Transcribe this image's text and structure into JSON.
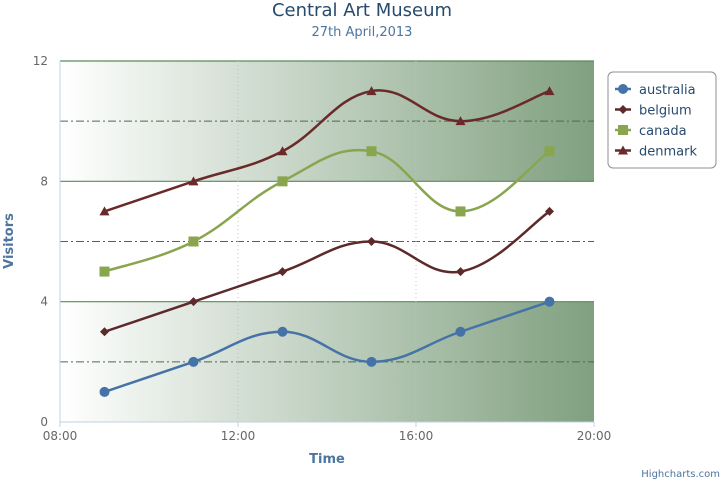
{
  "chart_data": {
    "type": "line",
    "title": "Central Art Museum",
    "subtitle": "27th April,2013",
    "xlabel": "Time",
    "ylabel": "Visitors",
    "x": [
      "09:00",
      "11:00",
      "13:00",
      "15:00",
      "17:00",
      "19:00"
    ],
    "x_ticks": [
      "08:00",
      "12:00",
      "16:00",
      "20:00"
    ],
    "y_ticks": [
      "0",
      "4",
      "8",
      "12"
    ],
    "xlim": [
      "08:00",
      "20:00"
    ],
    "ylim": [
      0,
      12
    ],
    "grid": true,
    "legend_position": "top-right",
    "series": [
      {
        "name": "australia",
        "values": [
          1,
          2,
          3,
          2,
          3,
          4
        ],
        "color": "#4572a7",
        "marker": "circle"
      },
      {
        "name": "belgium",
        "values": [
          3,
          4,
          5,
          6,
          5,
          7
        ],
        "color": "#5c2a2a",
        "marker": "diamond"
      },
      {
        "name": "canada",
        "values": [
          5,
          6,
          8,
          9,
          7,
          9
        ],
        "color": "#89a54e",
        "marker": "square"
      },
      {
        "name": "denmark",
        "values": [
          7,
          8,
          9,
          11,
          10,
          11
        ],
        "color": "#6b2a2a",
        "marker": "triangle"
      }
    ],
    "plot_bands": [
      {
        "from": 0,
        "to": 4,
        "color_from": "#ffffff",
        "color_to": "#80a080"
      },
      {
        "from": 8,
        "to": 12,
        "color_from": "#ffffff",
        "color_to": "#80a080"
      }
    ],
    "band_border_color": "#5a8a5a",
    "minor_grid_color": "#4d6a4d"
  },
  "credits": "Highcharts.com"
}
